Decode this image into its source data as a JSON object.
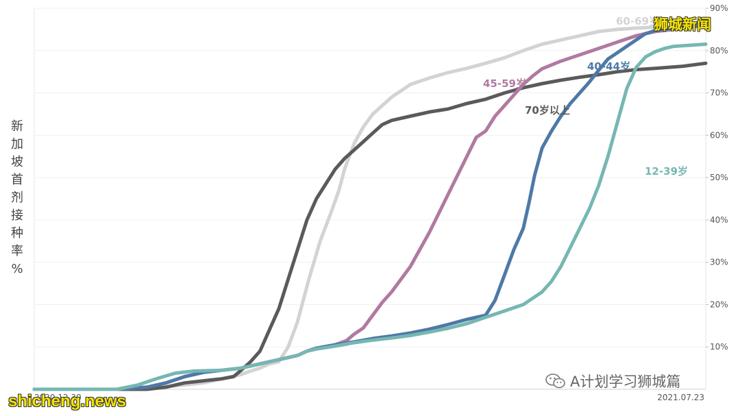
{
  "chart_data": {
    "type": "line",
    "ylabel": "新加坡首剂接种率%",
    "ylim": [
      0,
      90
    ],
    "yticks": [
      "10%",
      "20%",
      "30%",
      "40%",
      "50%",
      "60%",
      "70%",
      "80%",
      "90%"
    ],
    "x_tick_labels": [
      "2020.12.30",
      "2021.07.23"
    ],
    "x_range": [
      "2020-12-30",
      "2021-07-23"
    ],
    "x_unit": "days since 2020.12.30",
    "grid": true,
    "series": [
      {
        "name": "60-69岁",
        "color": "#d3d3d3",
        "points": [
          [
            0,
            0
          ],
          [
            44,
            0
          ],
          [
            66,
            0.5
          ],
          [
            80,
            1
          ],
          [
            90,
            1.5
          ],
          [
            105,
            3
          ],
          [
            110,
            3.5
          ],
          [
            115,
            4.3
          ],
          [
            120,
            5
          ],
          [
            125,
            6
          ],
          [
            130,
            6.5
          ],
          [
            135,
            10
          ],
          [
            140,
            16
          ],
          [
            146,
            26
          ],
          [
            152,
            35
          ],
          [
            158,
            42
          ],
          [
            162,
            47
          ],
          [
            165,
            52
          ],
          [
            170,
            58
          ],
          [
            175,
            62
          ],
          [
            180,
            65
          ],
          [
            185,
            67
          ],
          [
            190,
            69
          ],
          [
            195,
            70.5
          ],
          [
            200,
            72
          ],
          [
            210,
            73.5
          ],
          [
            220,
            74.8
          ],
          [
            230,
            75.8
          ],
          [
            240,
            77
          ],
          [
            250,
            78.3
          ],
          [
            260,
            80
          ],
          [
            270,
            81.5
          ],
          [
            280,
            82.5
          ],
          [
            290,
            83.5
          ],
          [
            300,
            84.5
          ],
          [
            310,
            85
          ],
          [
            320,
            85.3
          ],
          [
            330,
            85.5
          ],
          [
            345,
            86
          ],
          [
            357,
            87
          ]
        ]
      },
      {
        "name": "70岁以上",
        "color": "#5a5a5a",
        "points": [
          [
            0,
            0
          ],
          [
            44,
            0
          ],
          [
            60,
            0
          ],
          [
            70,
            0.5
          ],
          [
            80,
            1.5
          ],
          [
            90,
            2
          ],
          [
            100,
            2.5
          ],
          [
            106,
            3
          ],
          [
            110,
            4.5
          ],
          [
            115,
            6.5
          ],
          [
            120,
            9
          ],
          [
            125,
            14
          ],
          [
            130,
            19
          ],
          [
            135,
            26
          ],
          [
            140,
            33
          ],
          [
            145,
            40
          ],
          [
            150,
            45
          ],
          [
            155,
            48.5
          ],
          [
            160,
            52
          ],
          [
            165,
            54.5
          ],
          [
            170,
            56.5
          ],
          [
            175,
            58.5
          ],
          [
            180,
            60.5
          ],
          [
            185,
            62.5
          ],
          [
            190,
            63.5
          ],
          [
            200,
            64.5
          ],
          [
            210,
            65.5
          ],
          [
            220,
            66.2
          ],
          [
            230,
            67.5
          ],
          [
            240,
            68.5
          ],
          [
            250,
            70
          ],
          [
            260,
            71.2
          ],
          [
            270,
            72.2
          ],
          [
            280,
            73
          ],
          [
            290,
            73.7
          ],
          [
            300,
            74.3
          ],
          [
            310,
            75
          ],
          [
            320,
            75.5
          ],
          [
            330,
            75.8
          ],
          [
            345,
            76.3
          ],
          [
            357,
            77
          ]
        ]
      },
      {
        "name": "45-59岁",
        "color": "#b07aa1",
        "points": [
          [
            0,
            0
          ],
          [
            44,
            0
          ],
          [
            60,
            0.5
          ],
          [
            70,
            1.5
          ],
          [
            80,
            3
          ],
          [
            90,
            4
          ],
          [
            100,
            4.5
          ],
          [
            110,
            5
          ],
          [
            120,
            6
          ],
          [
            130,
            7
          ],
          [
            140,
            8
          ],
          [
            145,
            9
          ],
          [
            150,
            9.7
          ],
          [
            160,
            10.5
          ],
          [
            166,
            11.5
          ],
          [
            170,
            13
          ],
          [
            175,
            14.5
          ],
          [
            180,
            17.5
          ],
          [
            185,
            20.5
          ],
          [
            190,
            23
          ],
          [
            195,
            26
          ],
          [
            200,
            29
          ],
          [
            205,
            33
          ],
          [
            210,
            37
          ],
          [
            215,
            41.5
          ],
          [
            220,
            46
          ],
          [
            225,
            50.5
          ],
          [
            230,
            55
          ],
          [
            235,
            59.5
          ],
          [
            240,
            61
          ],
          [
            245,
            64.5
          ],
          [
            250,
            67
          ],
          [
            255,
            69.5
          ],
          [
            260,
            72
          ],
          [
            265,
            74
          ],
          [
            270,
            75.7
          ],
          [
            280,
            77.5
          ],
          [
            290,
            79
          ],
          [
            300,
            80.5
          ],
          [
            310,
            82
          ],
          [
            320,
            83.5
          ],
          [
            330,
            84.5
          ],
          [
            340,
            85
          ],
          [
            357,
            86
          ]
        ]
      },
      {
        "name": "40-44岁",
        "color": "#4e79a7",
        "points": [
          [
            0,
            0
          ],
          [
            44,
            0
          ],
          [
            60,
            0.5
          ],
          [
            70,
            1.5
          ],
          [
            80,
            3
          ],
          [
            90,
            4
          ],
          [
            100,
            4.5
          ],
          [
            110,
            5
          ],
          [
            120,
            6
          ],
          [
            130,
            7
          ],
          [
            140,
            8
          ],
          [
            145,
            9
          ],
          [
            150,
            9.7
          ],
          [
            160,
            10.5
          ],
          [
            170,
            11.2
          ],
          [
            180,
            12
          ],
          [
            190,
            12.6
          ],
          [
            200,
            13.3
          ],
          [
            210,
            14.2
          ],
          [
            220,
            15.3
          ],
          [
            230,
            16.5
          ],
          [
            240,
            17.5
          ],
          [
            245,
            21
          ],
          [
            250,
            27
          ],
          [
            255,
            33
          ],
          [
            260,
            38
          ],
          [
            263,
            44
          ],
          [
            266,
            50.5
          ],
          [
            270,
            57
          ],
          [
            275,
            61
          ],
          [
            280,
            64.5
          ],
          [
            285,
            67.5
          ],
          [
            290,
            70
          ],
          [
            295,
            72.5
          ],
          [
            300,
            75.3
          ],
          [
            305,
            78
          ],
          [
            310,
            79.5
          ],
          [
            315,
            81
          ],
          [
            320,
            82.5
          ],
          [
            325,
            84
          ],
          [
            330,
            84.7
          ],
          [
            340,
            85.3
          ],
          [
            357,
            86
          ]
        ]
      },
      {
        "name": "12-39岁",
        "color": "#76b7b2",
        "points": [
          [
            0,
            0
          ],
          [
            44,
            0
          ],
          [
            55,
            1
          ],
          [
            65,
            2.5
          ],
          [
            75,
            3.8
          ],
          [
            85,
            4.3
          ],
          [
            100,
            4.5
          ],
          [
            110,
            5
          ],
          [
            120,
            6
          ],
          [
            130,
            7
          ],
          [
            140,
            8
          ],
          [
            145,
            9
          ],
          [
            150,
            9.5
          ],
          [
            160,
            10.2
          ],
          [
            170,
            11
          ],
          [
            180,
            11.6
          ],
          [
            190,
            12.1
          ],
          [
            200,
            12.7
          ],
          [
            210,
            13.5
          ],
          [
            220,
            14.4
          ],
          [
            230,
            15.5
          ],
          [
            240,
            17
          ],
          [
            250,
            18.5
          ],
          [
            260,
            20
          ],
          [
            265,
            21.5
          ],
          [
            270,
            23
          ],
          [
            275,
            25.5
          ],
          [
            280,
            29
          ],
          [
            285,
            33.5
          ],
          [
            290,
            38
          ],
          [
            295,
            42.5
          ],
          [
            300,
            48
          ],
          [
            305,
            55
          ],
          [
            310,
            63
          ],
          [
            315,
            71
          ],
          [
            320,
            76
          ],
          [
            325,
            78.5
          ],
          [
            330,
            79.7
          ],
          [
            335,
            80.5
          ],
          [
            340,
            81
          ],
          [
            357,
            81.5
          ]
        ]
      }
    ],
    "annotations": [
      "60-69岁",
      "70岁以上",
      "45-59岁",
      "40-44岁",
      "12-39岁"
    ]
  },
  "watermarks": {
    "top": "狮城新闻",
    "bottom": "shicheng.news",
    "wechat": "A计划学习狮城篇"
  }
}
